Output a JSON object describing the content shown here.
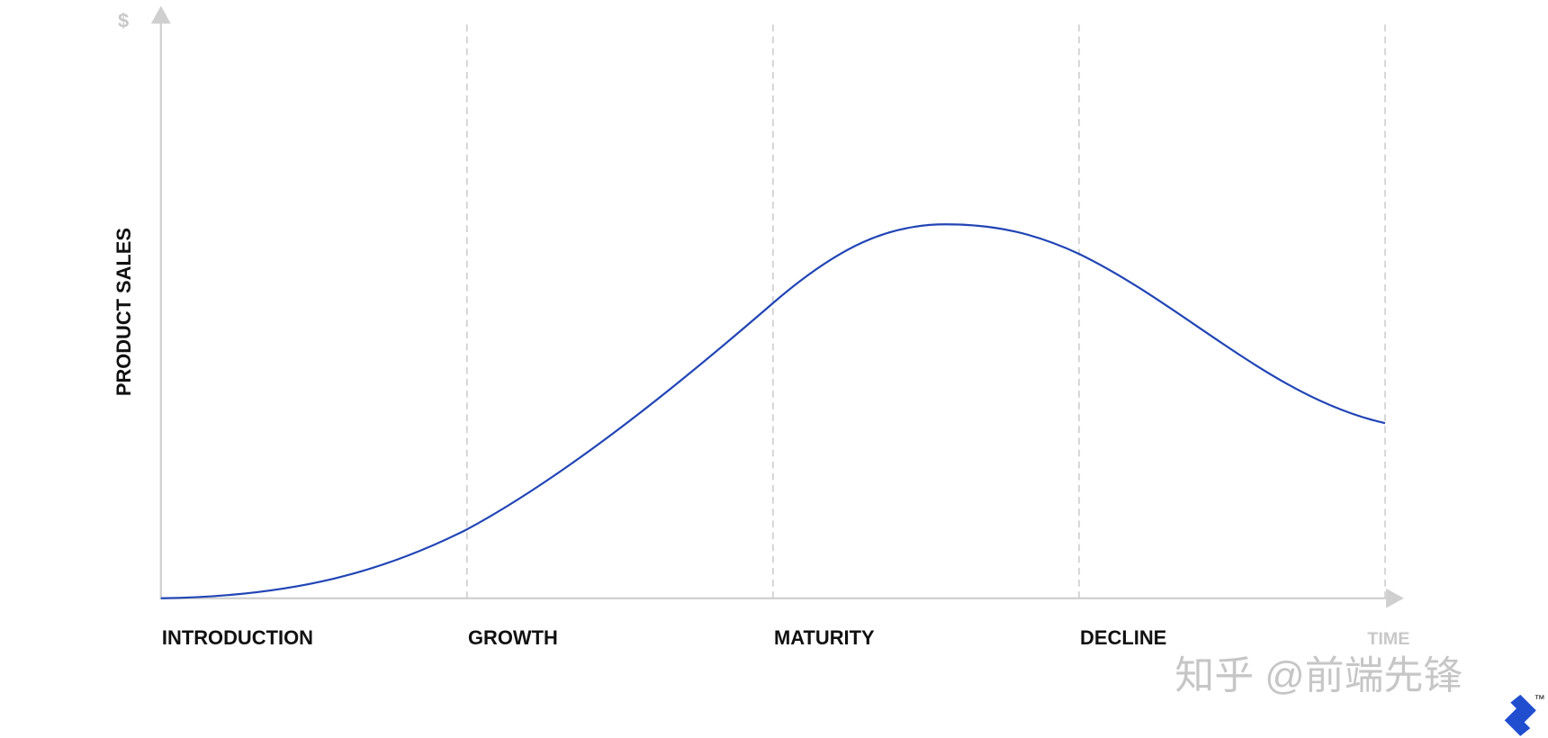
{
  "axis": {
    "y_symbol": "$",
    "y_label": "PRODUCT SALES",
    "x_label": "TIME"
  },
  "stages": [
    "INTRODUCTION",
    "GROWTH",
    "MATURITY",
    "DECLINE"
  ],
  "watermark": "知乎 @前端先锋",
  "logo_mark": "™"
}
